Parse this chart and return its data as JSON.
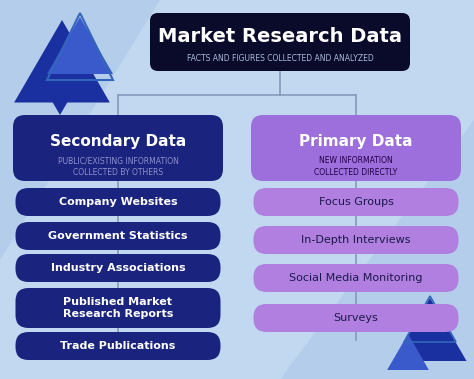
{
  "bg_color": "#c2d8f0",
  "title_box_color": "#0a0a2a",
  "title_text": "Market Research Data",
  "title_sub": "FACTS AND FIGURES COLLECTED AND ANALYZED",
  "title_text_color": "#ffffff",
  "title_sub_color": "#aabbdd",
  "left_header_color": "#1a237e",
  "left_header_text": "Secondary Data",
  "left_header_sub": "PUBLIC/EXISTING INFORMATION\nCOLLECTED BY OTHERS",
  "left_header_sub_color": "#9090cc",
  "right_header_color": "#9c6fdc",
  "right_header_text": "Primary Data",
  "right_header_sub": "NEW INFORMATION\nCOLLECTED DIRECTLY",
  "right_header_sub_color": "#220044",
  "left_items_color": "#1a237e",
  "left_items": [
    "Company Websites",
    "Government Statistics",
    "Industry Associations",
    "Published Market\nResearch Reports",
    "Trade Publications"
  ],
  "right_items_color": "#b07fe0",
  "right_items": [
    "Focus Groups",
    "In-Depth Interviews",
    "Social Media Monitoring",
    "Surveys"
  ],
  "item_text_color": "#ffffff",
  "right_item_text_color": "#1a1a4a",
  "connector_color": "#8899bb",
  "tri_dark_blue": "#1a2fa0",
  "tri_medium_blue": "#3a5acc",
  "tri_outline": "#2244aa",
  "tri_light": "#7aacdc",
  "bg_triangle_color": "#a8c4e8"
}
